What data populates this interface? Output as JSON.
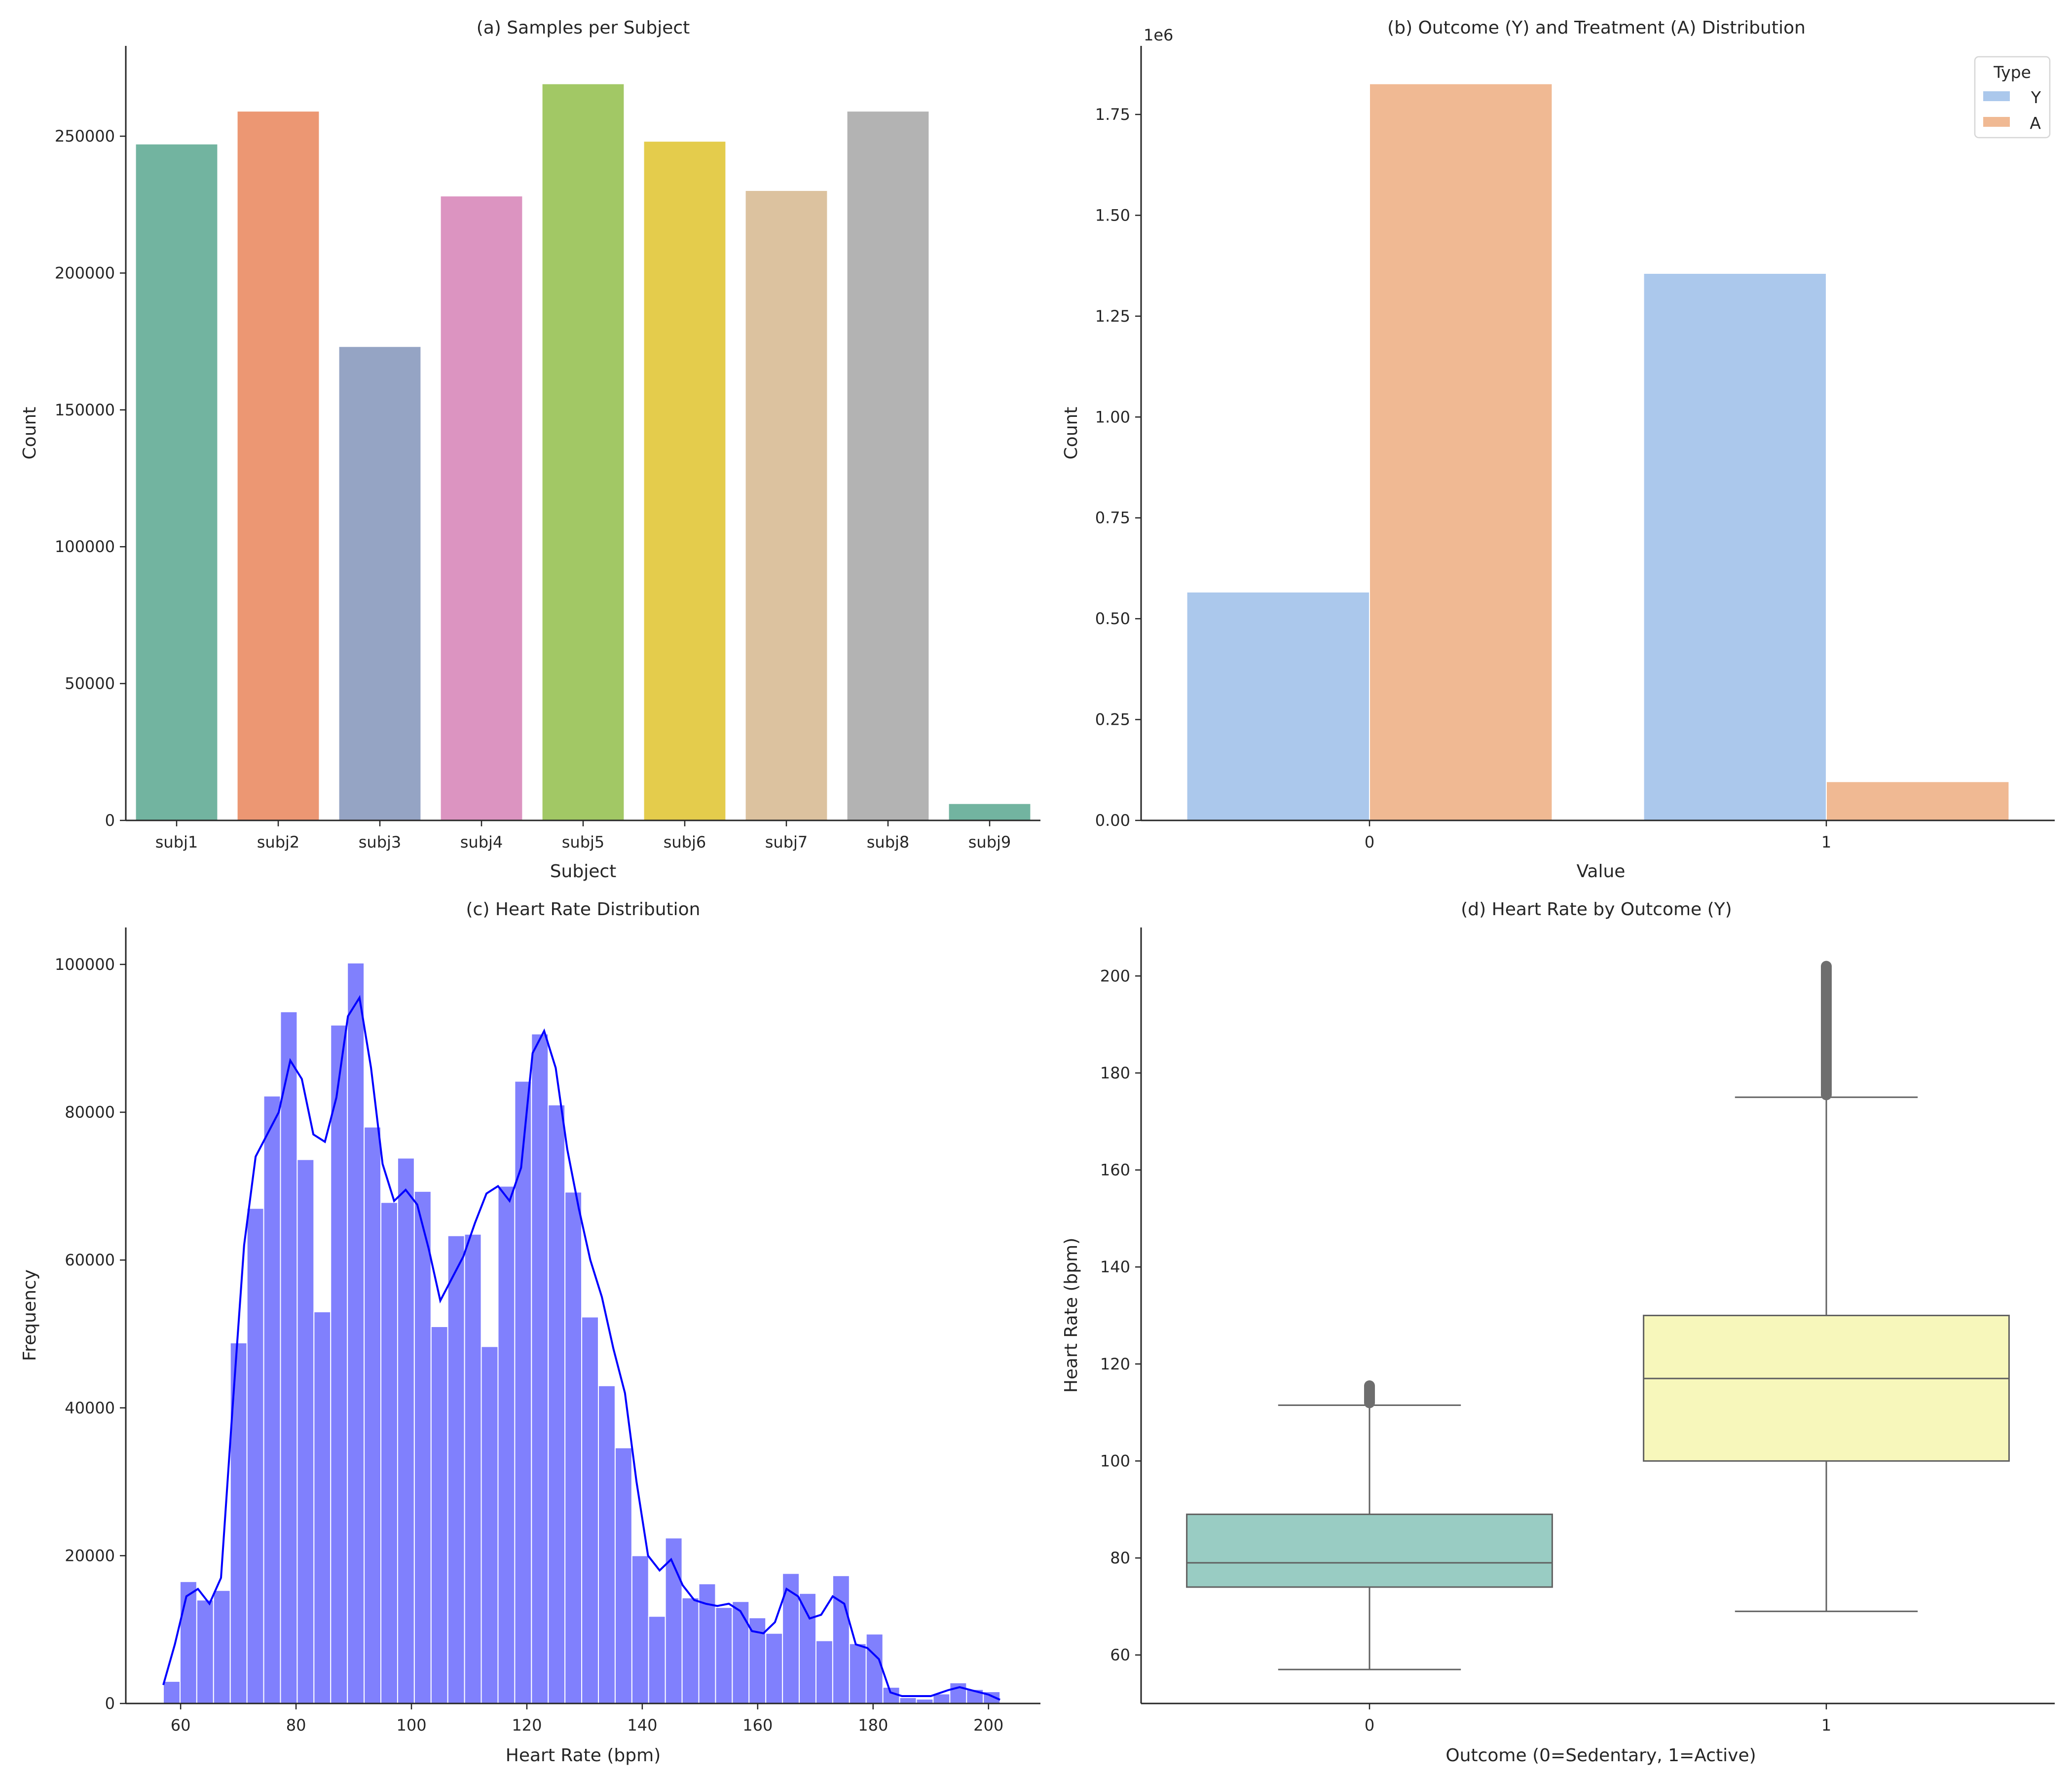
{
  "chart_data": [
    {
      "id": "a",
      "type": "bar",
      "title": "(a) Samples per Subject",
      "xlabel": "Subject",
      "ylabel": "Count",
      "categories": [
        "subj1",
        "subj2",
        "subj3",
        "subj4",
        "subj5",
        "subj6",
        "subj7",
        "subj8",
        "subj9"
      ],
      "values": [
        247000,
        259000,
        173000,
        228000,
        269000,
        248000,
        230000,
        259000,
        6000
      ],
      "colors": [
        "#72b4a0",
        "#ec9773",
        "#95a4c4",
        "#dc94c1",
        "#a2c865",
        "#e4cc4c",
        "#dcc29f",
        "#b3b3b3",
        "#72b4a0"
      ],
      "ylim": [
        0,
        283000
      ],
      "yticks": [
        0,
        50000,
        100000,
        150000,
        200000,
        250000
      ],
      "ytick_labels": [
        "0",
        "50000",
        "100000",
        "150000",
        "200000",
        "250000"
      ]
    },
    {
      "id": "b",
      "type": "bar",
      "title": "(b) Outcome (Y) and Treatment (A) Distribution",
      "xlabel": "Value",
      "ylabel": "Count",
      "offset_label": "1e6",
      "categories": [
        "0",
        "1"
      ],
      "series": [
        {
          "name": "Y",
          "color": "#abc8ec",
          "values": [
            0.565,
            1.355
          ]
        },
        {
          "name": "A",
          "color": "#f0b993",
          "values": [
            1.825,
            0.095
          ]
        }
      ],
      "legend_title": "Type",
      "legend_position": "top-right",
      "ylim": [
        0,
        1.92
      ],
      "yticks": [
        0,
        0.25,
        0.5,
        0.75,
        1.0,
        1.25,
        1.5,
        1.75
      ],
      "ytick_labels": [
        "0.00",
        "0.25",
        "0.50",
        "0.75",
        "1.00",
        "1.25",
        "1.50",
        "1.75"
      ]
    },
    {
      "id": "c",
      "type": "histogram",
      "title": "(c) Heart Rate Distribution",
      "xlabel": "Heart Rate (bpm)",
      "ylabel": "Frequency",
      "bar_color": "#8080fd",
      "kde_color": "#0000ff",
      "bin_start": 57,
      "bin_width": 2.9,
      "counts": [
        3000,
        16500,
        14000,
        15300,
        48800,
        67000,
        82200,
        93600,
        73600,
        53000,
        91800,
        100200,
        78000,
        67800,
        73800,
        69300,
        51000,
        63300,
        63500,
        48300,
        70000,
        84200,
        90600,
        81000,
        69200,
        52300,
        43000,
        34600,
        20000,
        11800,
        22400,
        14300,
        16200,
        13000,
        13800,
        11600,
        9500,
        17600,
        14900,
        8500,
        17300,
        8100,
        9400,
        2200,
        800,
        600,
        1300,
        2800,
        1900,
        1600
      ],
      "kde": [
        [
          57,
          2500
        ],
        [
          59,
          8000
        ],
        [
          61,
          14500
        ],
        [
          63,
          15500
        ],
        [
          65,
          13500
        ],
        [
          67,
          17000
        ],
        [
          69,
          40000
        ],
        [
          71,
          62000
        ],
        [
          73,
          74000
        ],
        [
          75,
          77000
        ],
        [
          77,
          80000
        ],
        [
          79,
          87000
        ],
        [
          81,
          84500
        ],
        [
          83,
          77000
        ],
        [
          85,
          76000
        ],
        [
          87,
          82000
        ],
        [
          89,
          93000
        ],
        [
          91,
          95500
        ],
        [
          93,
          86000
        ],
        [
          95,
          73000
        ],
        [
          97,
          68000
        ],
        [
          99,
          69500
        ],
        [
          101,
          67500
        ],
        [
          103,
          61500
        ],
        [
          105,
          54500
        ],
        [
          107,
          57500
        ],
        [
          109,
          60500
        ],
        [
          111,
          65000
        ],
        [
          113,
          69000
        ],
        [
          115,
          70000
        ],
        [
          117,
          68000
        ],
        [
          119,
          72500
        ],
        [
          121,
          88000
        ],
        [
          123,
          91000
        ],
        [
          125,
          86000
        ],
        [
          127,
          75000
        ],
        [
          129,
          67000
        ],
        [
          131,
          60000
        ],
        [
          133,
          55000
        ],
        [
          135,
          48000
        ],
        [
          137,
          42000
        ],
        [
          139,
          30000
        ],
        [
          141,
          20000
        ],
        [
          143,
          18000
        ],
        [
          145,
          19500
        ],
        [
          147,
          16000
        ],
        [
          149,
          14000
        ],
        [
          151,
          13500
        ],
        [
          153,
          13200
        ],
        [
          155,
          13500
        ],
        [
          157,
          12500
        ],
        [
          159,
          9800
        ],
        [
          161,
          9500
        ],
        [
          163,
          11000
        ],
        [
          165,
          15500
        ],
        [
          167,
          14500
        ],
        [
          169,
          11500
        ],
        [
          171,
          12000
        ],
        [
          173,
          14500
        ],
        [
          175,
          13500
        ],
        [
          177,
          8000
        ],
        [
          179,
          7500
        ],
        [
          181,
          6000
        ],
        [
          183,
          1500
        ],
        [
          185,
          1000
        ],
        [
          190,
          1000
        ],
        [
          193,
          1800
        ],
        [
          195,
          2200
        ],
        [
          197,
          1800
        ],
        [
          200,
          1200
        ],
        [
          202,
          500
        ]
      ],
      "xlim": [
        50.5,
        209
      ],
      "ylim": [
        0,
        105000
      ],
      "xticks": [
        60,
        80,
        100,
        120,
        140,
        160,
        180,
        200
      ],
      "xtick_labels": [
        "60",
        "80",
        "100",
        "120",
        "140",
        "160",
        "180",
        "200"
      ],
      "yticks": [
        0,
        20000,
        40000,
        60000,
        80000,
        100000
      ],
      "ytick_labels": [
        "0",
        "20000",
        "40000",
        "60000",
        "80000",
        "100000"
      ]
    },
    {
      "id": "d",
      "type": "box",
      "title": "(d) Heart Rate by Outcome (Y)",
      "xlabel": "Outcome (0=Sedentary, 1=Active)",
      "ylabel": "Heart Rate (bpm)",
      "categories": [
        "0",
        "1"
      ],
      "boxes": [
        {
          "whisker_low": 57,
          "q1": 74,
          "median": 79,
          "q3": 89,
          "whisker_high": 111.5,
          "outlier_min": 112,
          "outlier_max": 115.5,
          "color": "#99ccc3"
        },
        {
          "whisker_low": 69,
          "q1": 100,
          "median": 117,
          "q3": 130,
          "whisker_high": 175,
          "outlier_min": 175.5,
          "outlier_max": 202,
          "color": "#f7f7bb"
        }
      ],
      "ylim": [
        50,
        210
      ],
      "yticks": [
        60,
        80,
        100,
        120,
        140,
        160,
        180,
        200
      ],
      "ytick_labels": [
        "60",
        "80",
        "100",
        "120",
        "140",
        "160",
        "180",
        "200"
      ]
    }
  ]
}
